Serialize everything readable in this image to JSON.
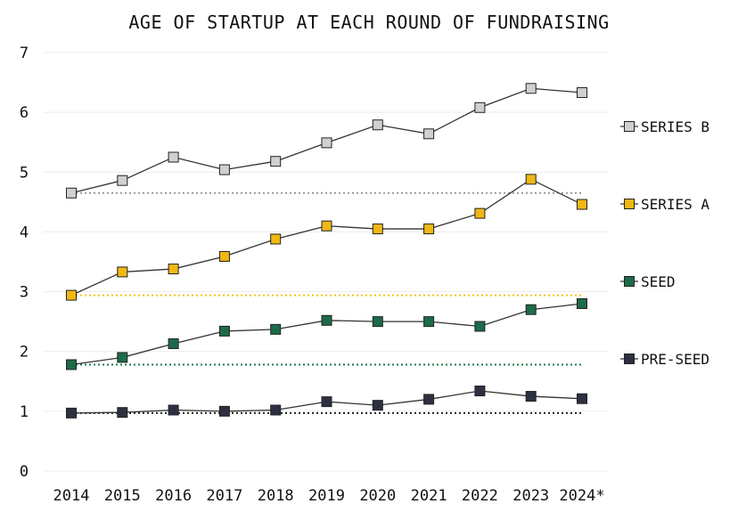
{
  "chart_data": {
    "type": "line",
    "title": "AGE OF STARTUP AT EACH ROUND OF FUNDRAISING",
    "xlabel": "",
    "ylabel": "",
    "categories": [
      "2014",
      "2015",
      "2016",
      "2017",
      "2018",
      "2019",
      "2020",
      "2021",
      "2022",
      "2023",
      "2024*"
    ],
    "ylim": [
      0,
      7
    ],
    "yticks": [
      "0",
      "1",
      "2",
      "3",
      "4",
      "5",
      "6",
      "7"
    ],
    "grid": true,
    "legend_position": "right",
    "baseline_style": "dotted horizontal line at each series' 2014 value",
    "series": [
      {
        "name": "SERIES B",
        "color": "#d0d0d0",
        "baseline_color": "#999999",
        "values": [
          4.65,
          4.86,
          5.25,
          5.04,
          5.18,
          5.49,
          5.79,
          5.64,
          6.08,
          6.4,
          6.33
        ]
      },
      {
        "name": "SERIES A",
        "color": "#f1b814",
        "baseline_color": "#f1c40f",
        "values": [
          2.94,
          3.33,
          3.38,
          3.59,
          3.88,
          4.1,
          4.05,
          4.05,
          4.31,
          4.88,
          4.46
        ]
      },
      {
        "name": "SEED",
        "color": "#1c6b49",
        "baseline_color": "#1f7a4a",
        "values": [
          1.78,
          1.9,
          2.13,
          2.34,
          2.37,
          2.52,
          2.5,
          2.5,
          2.42,
          2.7,
          2.8
        ]
      },
      {
        "name": "PRE-SEED",
        "color": "#2d3041",
        "baseline_color": "#222222",
        "values": [
          0.97,
          0.98,
          1.02,
          1.0,
          1.02,
          1.16,
          1.1,
          1.2,
          1.34,
          1.25,
          1.21
        ]
      }
    ]
  }
}
